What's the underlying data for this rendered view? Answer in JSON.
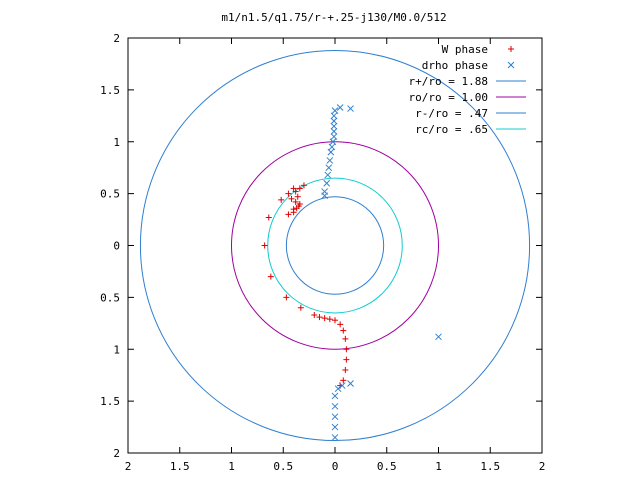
{
  "chart_data": {
    "type": "scatter",
    "title": "m1/n1.5/q1.75/r-+.25-j130/M0.0/512",
    "xlabel": "",
    "ylabel": "",
    "xlim": [
      -2,
      2
    ],
    "ylim": [
      -2,
      2
    ],
    "grid": false,
    "legend_position": "top-right",
    "x_ticks": [
      "2",
      "1.5",
      "1",
      "0.5",
      "0",
      "0.5",
      "1",
      "1.5",
      "2"
    ],
    "y_ticks": [
      "2",
      "1.5",
      "1",
      "0.5",
      "0",
      "0.5",
      "1",
      "1.5",
      "2"
    ],
    "x_tick_values": [
      -2,
      -1.5,
      -1,
      -0.5,
      0,
      0.5,
      1,
      1.5,
      2
    ],
    "y_tick_values": [
      2,
      1.5,
      1,
      0.5,
      0,
      -0.5,
      -1,
      -1.5,
      -2
    ],
    "circles": [
      {
        "name": "r+/ro = 1.88",
        "radius": 1.88,
        "color": "#2f7fd1"
      },
      {
        "name": "ro/ro = 1.00",
        "radius": 1.0,
        "color": "#a000a0"
      },
      {
        "name": "r-/ro = .47",
        "radius": 0.47,
        "color": "#2f7fd1"
      },
      {
        "name": "rc/ro = .65",
        "radius": 0.65,
        "color": "#11ccd0"
      }
    ],
    "series": [
      {
        "name": "W phase",
        "marker": "+",
        "color": "#e00000",
        "points": [
          [
            -0.68,
            0.0
          ],
          [
            -0.64,
            0.27
          ],
          [
            -0.62,
            -0.3
          ],
          [
            -0.52,
            0.44
          ],
          [
            -0.47,
            -0.5
          ],
          [
            -0.45,
            0.5
          ],
          [
            -0.4,
            0.55
          ],
          [
            -0.45,
            0.3
          ],
          [
            -0.4,
            0.32
          ],
          [
            -0.33,
            -0.6
          ],
          [
            -0.4,
            0.35
          ],
          [
            -0.35,
            0.38
          ],
          [
            -0.38,
            0.42
          ],
          [
            -0.36,
            0.47
          ],
          [
            -0.34,
            0.55
          ],
          [
            -0.38,
            0.52
          ],
          [
            -0.42,
            0.45
          ],
          [
            -0.37,
            0.36
          ],
          [
            -0.34,
            0.4
          ],
          [
            -0.3,
            0.58
          ],
          [
            -0.2,
            -0.67
          ],
          [
            -0.15,
            -0.69
          ],
          [
            -0.1,
            -0.7
          ],
          [
            -0.05,
            -0.71
          ],
          [
            0.0,
            -0.72
          ],
          [
            0.05,
            -0.76
          ],
          [
            0.08,
            -0.82
          ],
          [
            0.1,
            -0.9
          ],
          [
            0.11,
            -1.0
          ],
          [
            0.11,
            -1.1
          ],
          [
            0.1,
            -1.2
          ],
          [
            0.08,
            -1.3
          ],
          [
            0.05,
            -1.35
          ]
        ]
      },
      {
        "name": "drho phase",
        "marker": "x",
        "color": "#2f7fd1",
        "points": [
          [
            0.15,
            1.32
          ],
          [
            0.05,
            1.33
          ],
          [
            0.0,
            1.3
          ],
          [
            -0.01,
            1.25
          ],
          [
            -0.01,
            1.2
          ],
          [
            -0.01,
            1.15
          ],
          [
            -0.01,
            1.1
          ],
          [
            -0.01,
            1.05
          ],
          [
            -0.02,
            1.0
          ],
          [
            -0.03,
            0.95
          ],
          [
            -0.04,
            0.9
          ],
          [
            -0.05,
            0.82
          ],
          [
            -0.06,
            0.75
          ],
          [
            -0.07,
            0.68
          ],
          [
            -0.08,
            0.6
          ],
          [
            -0.1,
            0.52
          ],
          [
            -0.1,
            0.48
          ],
          [
            0.15,
            -1.33
          ],
          [
            0.07,
            -1.35
          ],
          [
            0.03,
            -1.38
          ],
          [
            0.0,
            -1.45
          ],
          [
            0.0,
            -1.55
          ],
          [
            0.0,
            -1.65
          ],
          [
            0.0,
            -1.75
          ],
          [
            0.0,
            -1.85
          ],
          [
            1.0,
            -0.88
          ]
        ]
      }
    ]
  }
}
